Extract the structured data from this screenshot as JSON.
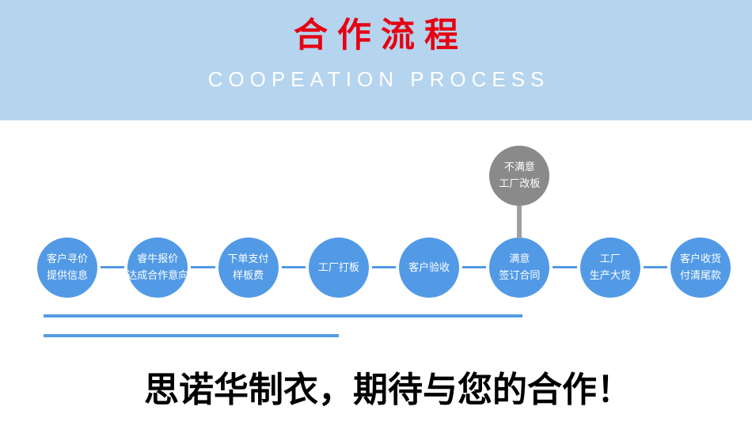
{
  "header": {
    "title": "合作流程",
    "subtitle": "COOPEATION PROCESS"
  },
  "flow": {
    "steps": [
      {
        "lines": [
          "客户寻价",
          "提供信息"
        ]
      },
      {
        "lines": [
          "睿牛报价",
          "达成合作意向"
        ]
      },
      {
        "lines": [
          "下单支付",
          "样板费"
        ]
      },
      {
        "lines": [
          "工厂打板"
        ]
      },
      {
        "lines": [
          "客户验收"
        ]
      },
      {
        "lines": [
          "满意",
          "签订合同"
        ]
      },
      {
        "lines": [
          "工厂",
          "生产大货"
        ]
      },
      {
        "lines": [
          "客户收货",
          "付清尾款"
        ]
      }
    ],
    "branch": {
      "lines": [
        "不满意",
        "工厂改板"
      ],
      "attached_to_step": 6
    }
  },
  "footer": {
    "slogan": "思诺华制衣，期待与您的合作！"
  },
  "colors": {
    "banner_bg": "#b5d4ee",
    "title_red": "#e60012",
    "subtitle_white": "#ffffff",
    "circle_blue": "#529ae6",
    "connector_blue": "#529ae6",
    "gray_circle": "#8a8a8a",
    "gray_line": "#a0a0a0",
    "line_blue": "#549be4",
    "slogan_color": "#000000"
  }
}
